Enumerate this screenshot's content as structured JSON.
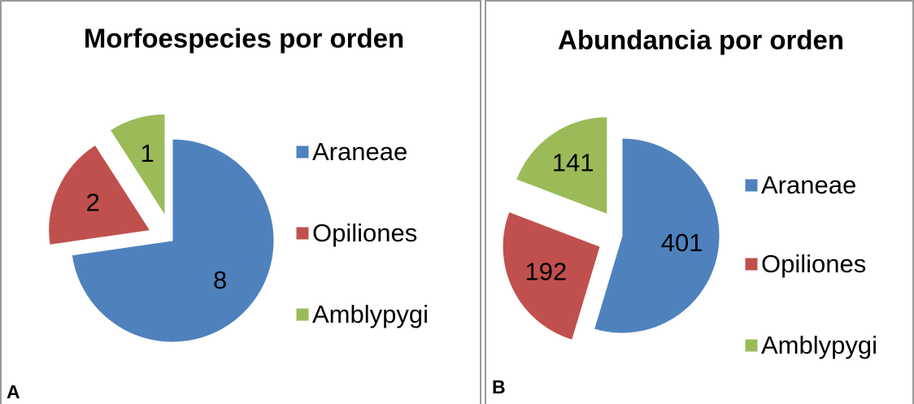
{
  "chart_data": [
    {
      "type": "pie",
      "title": "Morfoespecies por orden",
      "panel_label": "A",
      "categories": [
        "Araneae",
        "Opiliones",
        "Amblypygi"
      ],
      "values": [
        8,
        2,
        1
      ],
      "colors": [
        "#4f81bd",
        "#c0504d",
        "#9bbb59"
      ],
      "legend": "right"
    },
    {
      "type": "pie",
      "title": "Abundancia por orden",
      "panel_label": "B",
      "categories": [
        "Araneae",
        "Opiliones",
        "Amblypygi"
      ],
      "values": [
        401,
        192,
        141
      ],
      "colors": [
        "#4f81bd",
        "#c0504d",
        "#9bbb59"
      ],
      "legend": "right"
    }
  ]
}
